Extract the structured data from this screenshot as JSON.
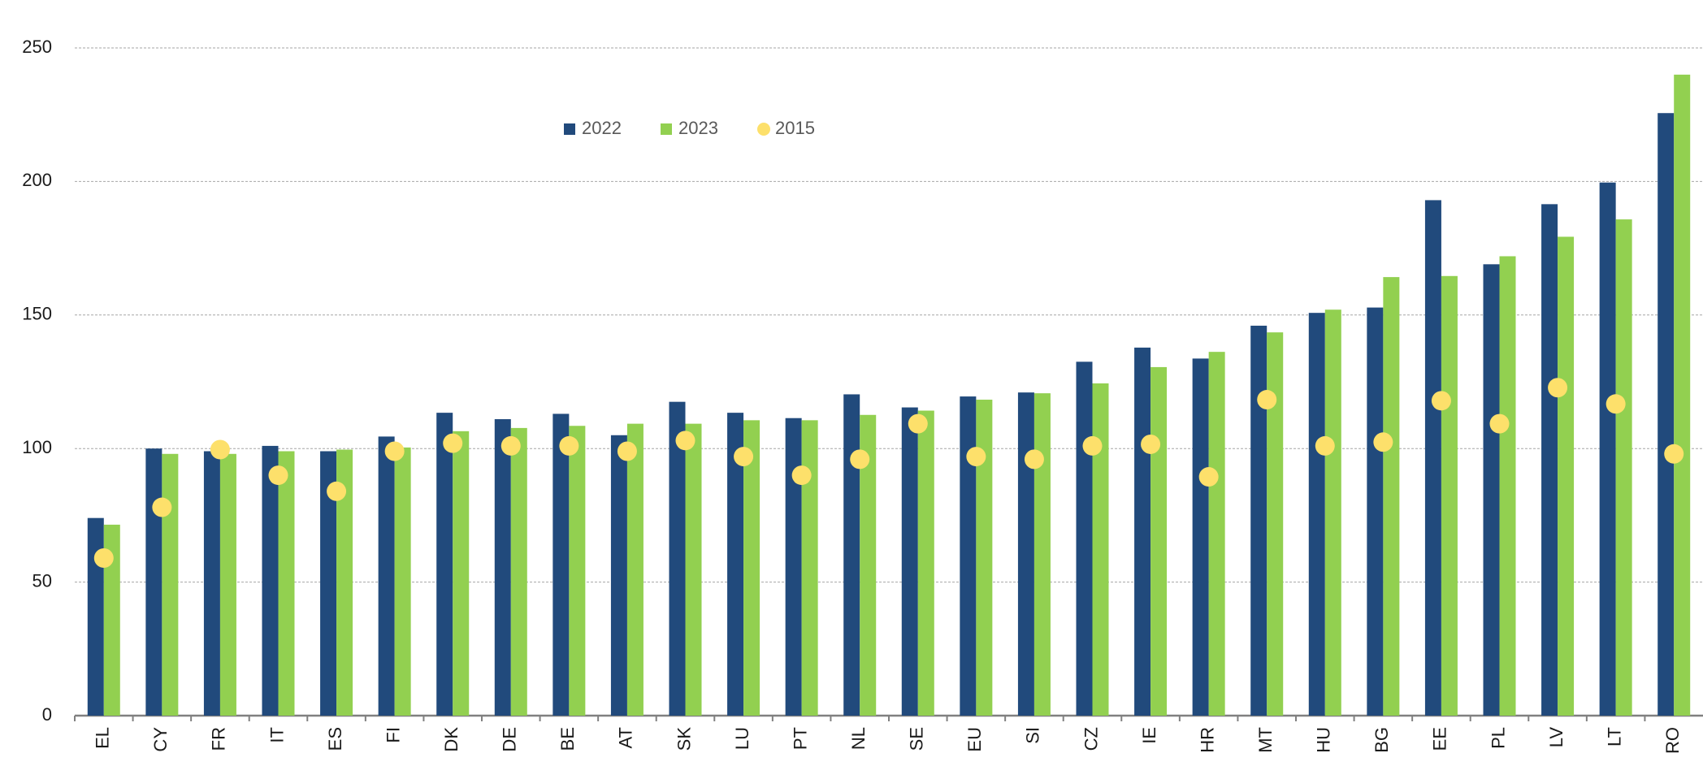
{
  "chart_data": {
    "type": "bar",
    "categories": [
      "EL",
      "CY",
      "FR",
      "IT",
      "ES",
      "FI",
      "DK",
      "DE",
      "BE",
      "AT",
      "SK",
      "LU",
      "PT",
      "NL",
      "SE",
      "EU",
      "SI",
      "CZ",
      "IE",
      "HR",
      "MT",
      "HU",
      "BG",
      "EE",
      "PL",
      "LV",
      "LT",
      "RO"
    ],
    "series": [
      {
        "name": "2022",
        "color": "#214a7c",
        "type": "bar",
        "values": [
          74,
          100,
          99,
          101,
          99,
          104.5,
          113.4,
          111,
          113,
          105,
          117.5,
          113.4,
          111.4,
          120.3,
          115.4,
          119.5,
          121,
          132.5,
          137.8,
          133.7,
          146,
          150.8,
          152.8,
          193,
          169,
          191.5,
          199.6,
          225.6
        ]
      },
      {
        "name": "2023",
        "color": "#92d050",
        "type": "bar",
        "values": [
          71.5,
          98,
          98,
          99,
          99.6,
          100.4,
          106.5,
          107.7,
          108.5,
          109.3,
          109.3,
          110.6,
          110.6,
          112.6,
          114.2,
          118.3,
          120.7,
          124.4,
          130.5,
          136.2,
          143.5,
          152,
          164.2,
          164.6,
          172,
          179.3,
          185.8,
          240
        ]
      },
      {
        "name": "2015",
        "color": "#fde06b",
        "type": "scatter",
        "values": [
          59,
          78,
          99.6,
          90,
          84,
          99,
          102,
          101,
          101,
          99,
          103,
          97,
          90,
          96,
          109.3,
          97,
          96,
          101,
          101.6,
          89.4,
          118.3,
          101,
          102.4,
          117.9,
          109.3,
          122.8,
          116.7,
          98
        ]
      }
    ],
    "ylim": [
      0,
      250
    ],
    "yticks": [
      0,
      50,
      100,
      150,
      200,
      250
    ],
    "grid": true,
    "legend": "top-center"
  }
}
